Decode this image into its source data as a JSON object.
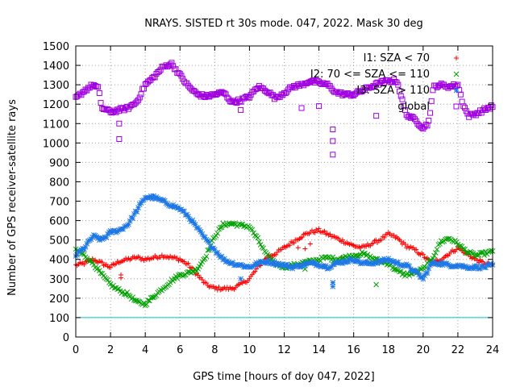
{
  "chart_data": {
    "type": "scatter",
    "title": "NRAYS. SISTED rt 30s mode. 047, 2022. Mask 30 deg",
    "xlabel": "GPS time [hours of doy 047, 2022]",
    "ylabel": "Number of GPS receiver-satellite rays",
    "xlim": [
      0,
      24
    ],
    "ylim": [
      0,
      1500
    ],
    "xticks": [
      "0",
      "2",
      "4",
      "6",
      "8",
      "10",
      "12",
      "14",
      "16",
      "18",
      "20",
      "22",
      "24"
    ],
    "yticks": [
      "0",
      "100",
      "200",
      "300",
      "400",
      "500",
      "600",
      "700",
      "800",
      "900",
      "1000",
      "1100",
      "1200",
      "1300",
      "1400",
      "1500"
    ],
    "grid": true,
    "reference_line": {
      "y": 100,
      "color": "#00c8c8"
    },
    "legend_position": "top-right",
    "series": [
      {
        "name": "I1: SZA < 70",
        "marker": "+",
        "color": "#ff0000",
        "x": [
          0,
          0.5,
          1,
          1.5,
          2,
          2.5,
          3,
          3.5,
          4,
          4.5,
          5,
          5.5,
          6,
          6.5,
          7,
          7.5,
          8,
          8.5,
          9,
          9.5,
          10,
          10.5,
          11,
          11.5,
          12,
          12.5,
          13,
          13.5,
          14,
          14.5,
          15,
          15.5,
          16,
          16.5,
          17,
          17.5,
          18,
          18.5,
          19,
          19.5,
          20,
          20.5,
          21,
          21.5,
          22,
          22.5,
          23,
          23.5,
          24
        ],
        "y": [
          370,
          380,
          400,
          380,
          360,
          390,
          400,
          410,
          400,
          410,
          420,
          410,
          400,
          370,
          320,
          270,
          250,
          250,
          250,
          270,
          300,
          360,
          410,
          430,
          460,
          490,
          520,
          540,
          550,
          530,
          510,
          490,
          470,
          460,
          480,
          500,
          530,
          510,
          470,
          450,
          420,
          380,
          400,
          430,
          460,
          430,
          400,
          380,
          370
        ],
        "outliers": [
          [
            2.6,
            320
          ],
          [
            2.6,
            305
          ],
          [
            12.8,
            460
          ],
          [
            13.2,
            455
          ],
          [
            13.5,
            480
          ],
          [
            15.3,
            410
          ]
        ]
      },
      {
        "name": "I2: 70 <= SZA <= 110",
        "marker": "x",
        "color": "#00a000",
        "x": [
          0,
          0.5,
          1,
          1.5,
          2,
          2.5,
          3,
          3.5,
          4,
          4.5,
          5,
          5.5,
          6,
          6.5,
          7,
          7.5,
          8,
          8.5,
          9,
          9.5,
          10,
          10.5,
          11,
          11.5,
          12,
          12.5,
          13,
          13.5,
          14,
          14.5,
          15,
          15.5,
          16,
          16.5,
          17,
          17.5,
          18,
          18.5,
          19,
          19.5,
          20,
          20.5,
          21,
          21.5,
          22,
          22.5,
          23,
          23.5,
          24
        ],
        "y": [
          450,
          420,
          380,
          320,
          270,
          240,
          220,
          180,
          170,
          210,
          250,
          290,
          320,
          330,
          350,
          420,
          520,
          580,
          585,
          575,
          570,
          500,
          420,
          380,
          360,
          370,
          380,
          390,
          400,
          410,
          400,
          410,
          420,
          430,
          410,
          390,
          380,
          340,
          320,
          330,
          350,
          400,
          490,
          510,
          480,
          440,
          420,
          430,
          440
        ],
        "outliers": [
          [
            13.2,
            350
          ],
          [
            14.8,
            280
          ],
          [
            17.3,
            270
          ]
        ]
      },
      {
        "name": "I3: SZA > 110",
        "marker": "*",
        "color": "#1e78e6",
        "x": [
          0,
          0.5,
          1,
          1.5,
          2,
          2.5,
          3,
          3.5,
          4,
          4.5,
          5,
          5.5,
          6,
          6.5,
          7,
          7.5,
          8,
          8.5,
          9,
          9.5,
          10,
          10.5,
          11,
          11.5,
          12,
          12.5,
          13,
          13.5,
          14,
          14.5,
          15,
          15.5,
          16,
          16.5,
          17,
          17.5,
          18,
          18.5,
          19,
          19.5,
          20,
          20.5,
          21,
          21.5,
          22,
          22.5,
          23,
          23.5,
          24
        ],
        "y": [
          420,
          460,
          520,
          500,
          540,
          550,
          580,
          650,
          720,
          720,
          700,
          680,
          660,
          620,
          560,
          500,
          450,
          400,
          380,
          370,
          360,
          380,
          390,
          380,
          370,
          360,
          370,
          380,
          375,
          360,
          380,
          390,
          400,
          380,
          380,
          390,
          400,
          380,
          370,
          340,
          300,
          380,
          380,
          370,
          370,
          360,
          360,
          360,
          370
        ],
        "outliers": [
          [
            9.5,
            300
          ],
          [
            14.8,
            260
          ],
          [
            14.8,
            280
          ]
        ]
      },
      {
        "name": "global",
        "marker": "open-square",
        "color": "#a000e0",
        "x": [
          0,
          0.5,
          1,
          1.3,
          1.5,
          2,
          2.5,
          3,
          3.5,
          4,
          4.5,
          5,
          5.5,
          6,
          6.5,
          7,
          7.5,
          8,
          8.5,
          9,
          9.5,
          10,
          10.5,
          11,
          11.5,
          12,
          12.5,
          13,
          13.5,
          14,
          14.5,
          15,
          15.5,
          16,
          16.5,
          17,
          17.5,
          18,
          18.5,
          19,
          19.5,
          20,
          20.3,
          20.6,
          21,
          21.5,
          22,
          22.3,
          22.6,
          23,
          23.5,
          24
        ],
        "y": [
          1230,
          1270,
          1300,
          1280,
          1180,
          1160,
          1170,
          1180,
          1210,
          1300,
          1340,
          1390,
          1410,
          1350,
          1290,
          1250,
          1240,
          1250,
          1260,
          1210,
          1220,
          1240,
          1290,
          1270,
          1230,
          1260,
          1290,
          1300,
          1320,
          1310,
          1300,
          1260,
          1250,
          1250,
          1270,
          1290,
          1310,
          1320,
          1320,
          1150,
          1120,
          1080,
          1100,
          1290,
          1300,
          1290,
          1300,
          1200,
          1140,
          1150,
          1170,
          1190
        ],
        "outliers": [
          [
            2.5,
            1100
          ],
          [
            2.5,
            1020
          ],
          [
            13,
            1180
          ],
          [
            14,
            1190
          ],
          [
            14.8,
            1070
          ],
          [
            14.8,
            1010
          ],
          [
            14.8,
            940
          ],
          [
            17.3,
            1140
          ],
          [
            9.5,
            1170
          ]
        ]
      }
    ]
  }
}
